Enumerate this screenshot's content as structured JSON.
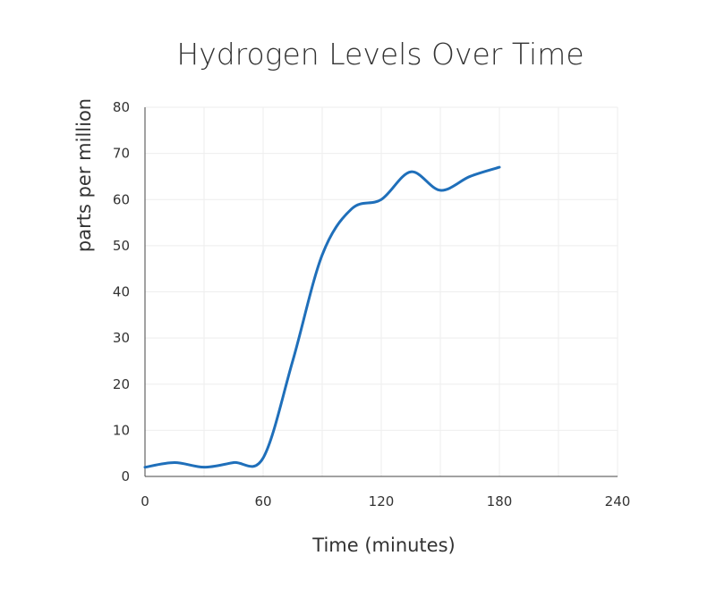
{
  "chart_data": {
    "type": "line",
    "title": "Hydrogen Levels Over Time",
    "xlabel": "Time (minutes)",
    "ylabel": "parts per million",
    "xlim": [
      0,
      240
    ],
    "ylim": [
      0,
      80
    ],
    "x_ticks": [
      0,
      60,
      120,
      180,
      240
    ],
    "y_ticks": [
      0,
      10,
      20,
      30,
      40,
      50,
      60,
      70,
      80
    ],
    "grid": true,
    "legend": "none",
    "series": [
      {
        "color": "#1f6fba",
        "x": [
          0,
          15,
          30,
          45,
          60,
          75,
          90,
          105,
          120,
          135,
          150,
          165,
          180
        ],
        "y": [
          2,
          3,
          2,
          3,
          4,
          25,
          48,
          58,
          60,
          66,
          62,
          65,
          67
        ]
      }
    ]
  }
}
